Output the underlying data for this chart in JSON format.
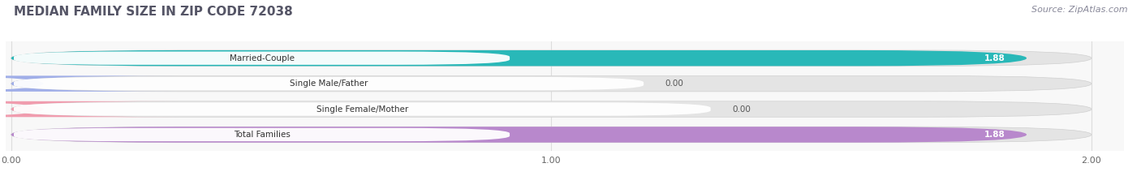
{
  "title": "MEDIAN FAMILY SIZE IN ZIP CODE 72038",
  "source": "Source: ZipAtlas.com",
  "categories": [
    "Married-Couple",
    "Single Male/Father",
    "Single Female/Mother",
    "Total Families"
  ],
  "values": [
    1.88,
    0.0,
    0.0,
    1.88
  ],
  "bar_colors": [
    "#29b8b8",
    "#a0aee8",
    "#f09cae",
    "#b888cc"
  ],
  "bar_bg_color": "#e8e8e8",
  "xlim_max": 2.0,
  "xticks": [
    0.0,
    1.0,
    2.0
  ],
  "xtick_labels": [
    "0.00",
    "1.00",
    "2.00"
  ],
  "figsize": [
    14.06,
    2.33
  ],
  "dpi": 100,
  "bar_height": 0.62,
  "value_label_fontsize": 7.5,
  "category_fontsize": 7.5,
  "title_fontsize": 11,
  "source_fontsize": 8,
  "title_color": "#555566",
  "source_color": "#888899",
  "bg_color": "#ffffff",
  "plot_bg_color": "#f8f8f8",
  "grid_color": "#dddddd",
  "bar_bg_color2": "#e4e4e4"
}
